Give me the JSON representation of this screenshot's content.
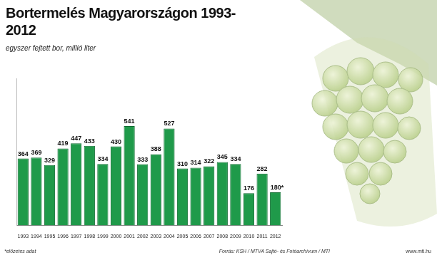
{
  "chart_data": {
    "type": "bar",
    "title": "Bortermelés Magyarországon 1993-2012",
    "subtitle": "egyszer fejtett bor, millió liter",
    "footnote": "*előzetes adat",
    "source": "Forrás: KSH / MTVA Sajtó- és Fotóarchívum / MTI",
    "website": "www.mti.hu",
    "categories": [
      "1993",
      "1994",
      "1995",
      "1996",
      "1997",
      "1998",
      "1999",
      "2000",
      "2001",
      "2002",
      "2003",
      "2004",
      "2005",
      "2006",
      "2007",
      "2008",
      "2009",
      "2010",
      "2011",
      "2012"
    ],
    "values": [
      364,
      369,
      329,
      419,
      447,
      433,
      334,
      430,
      541,
      333,
      388,
      527,
      310,
      314,
      322,
      345,
      334,
      176,
      282,
      180
    ],
    "value_labels": [
      "364",
      "369",
      "329",
      "419",
      "447",
      "433",
      "334",
      "430",
      "541",
      "333",
      "388",
      "527",
      "310",
      "314",
      "322",
      "345",
      "334",
      "176",
      "282",
      "180*"
    ],
    "color": "#1f9a4a",
    "ylim": [
      0,
      800
    ],
    "grid": false,
    "data_labels": true,
    "tick_labels": "x"
  }
}
